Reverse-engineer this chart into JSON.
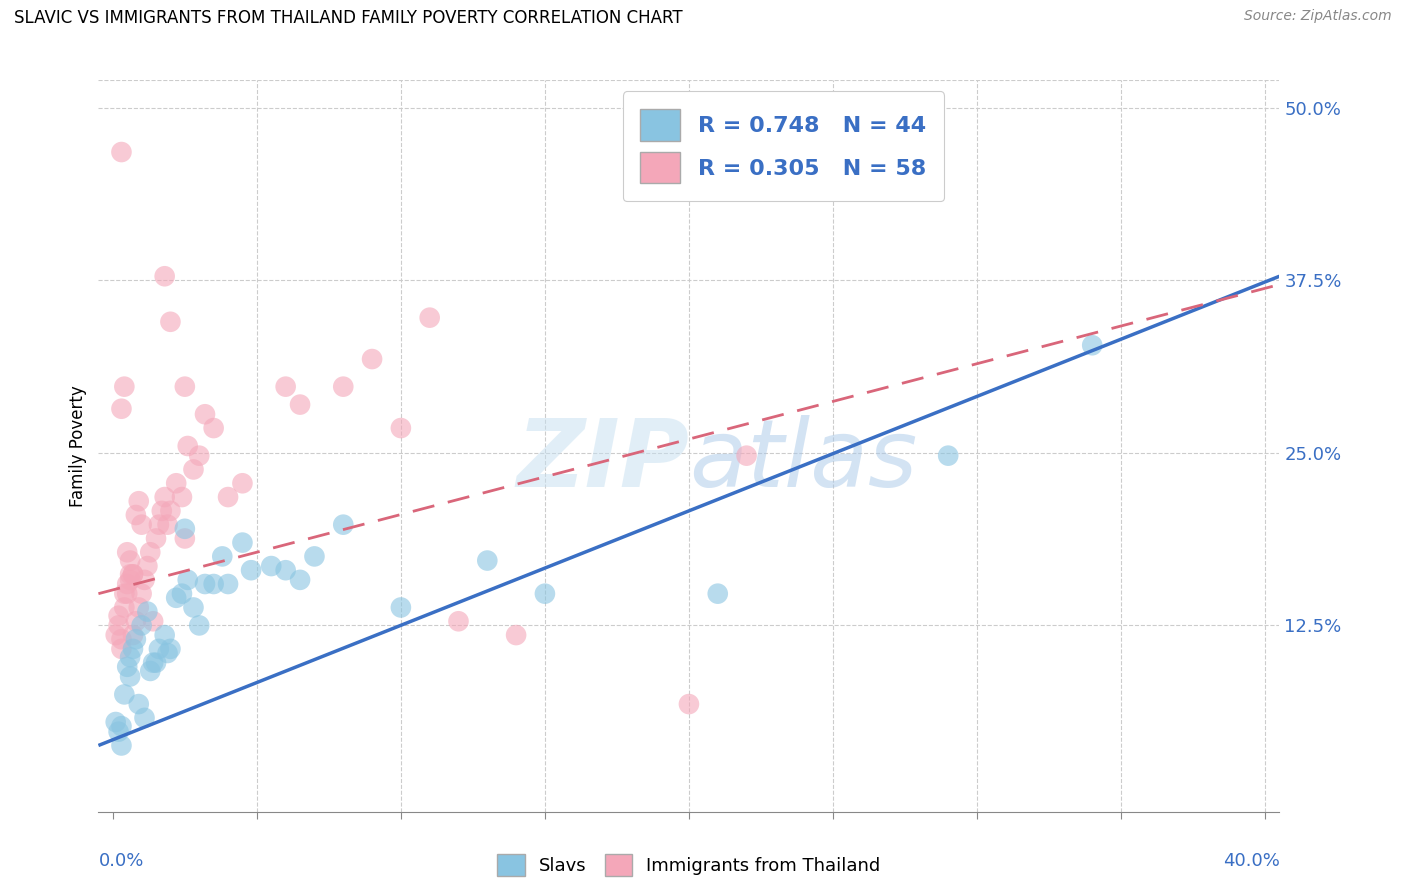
{
  "title": "SLAVIC VS IMMIGRANTS FROM THAILAND FAMILY POVERTY CORRELATION CHART",
  "source": "Source: ZipAtlas.com",
  "ylabel": "Family Poverty",
  "yticks": [
    0.0,
    0.125,
    0.25,
    0.375,
    0.5
  ],
  "ytick_labels": [
    "",
    "12.5%",
    "25.0%",
    "37.5%",
    "50.0%"
  ],
  "xticks": [
    0.0,
    0.05,
    0.1,
    0.15,
    0.2,
    0.25,
    0.3,
    0.35,
    0.4
  ],
  "xlim": [
    -0.005,
    0.405
  ],
  "ylim": [
    -0.01,
    0.52
  ],
  "legend_slavs_R": "0.748",
  "legend_slavs_N": "44",
  "legend_thai_R": "0.305",
  "legend_thai_N": "58",
  "slavs_color": "#89c4e1",
  "thai_color": "#f4a7b9",
  "slavs_line_color": "#3a6fc4",
  "thai_line_color": "#d9667a",
  "watermark_color": "#c5dff0",
  "slavs_scatter": [
    [
      0.001,
      0.055
    ],
    [
      0.002,
      0.048
    ],
    [
      0.003,
      0.038
    ],
    [
      0.003,
      0.052
    ],
    [
      0.004,
      0.075
    ],
    [
      0.005,
      0.095
    ],
    [
      0.006,
      0.088
    ],
    [
      0.006,
      0.102
    ],
    [
      0.007,
      0.108
    ],
    [
      0.008,
      0.115
    ],
    [
      0.009,
      0.068
    ],
    [
      0.01,
      0.125
    ],
    [
      0.011,
      0.058
    ],
    [
      0.012,
      0.135
    ],
    [
      0.013,
      0.092
    ],
    [
      0.014,
      0.098
    ],
    [
      0.015,
      0.098
    ],
    [
      0.016,
      0.108
    ],
    [
      0.018,
      0.118
    ],
    [
      0.019,
      0.105
    ],
    [
      0.02,
      0.108
    ],
    [
      0.022,
      0.145
    ],
    [
      0.024,
      0.148
    ],
    [
      0.025,
      0.195
    ],
    [
      0.026,
      0.158
    ],
    [
      0.028,
      0.138
    ],
    [
      0.03,
      0.125
    ],
    [
      0.032,
      0.155
    ],
    [
      0.035,
      0.155
    ],
    [
      0.038,
      0.175
    ],
    [
      0.04,
      0.155
    ],
    [
      0.045,
      0.185
    ],
    [
      0.048,
      0.165
    ],
    [
      0.055,
      0.168
    ],
    [
      0.06,
      0.165
    ],
    [
      0.065,
      0.158
    ],
    [
      0.07,
      0.175
    ],
    [
      0.08,
      0.198
    ],
    [
      0.1,
      0.138
    ],
    [
      0.13,
      0.172
    ],
    [
      0.15,
      0.148
    ],
    [
      0.21,
      0.148
    ],
    [
      0.29,
      0.248
    ],
    [
      0.34,
      0.328
    ]
  ],
  "thai_scatter": [
    [
      0.001,
      0.118
    ],
    [
      0.002,
      0.125
    ],
    [
      0.002,
      0.132
    ],
    [
      0.003,
      0.108
    ],
    [
      0.003,
      0.115
    ],
    [
      0.004,
      0.138
    ],
    [
      0.004,
      0.148
    ],
    [
      0.005,
      0.148
    ],
    [
      0.005,
      0.155
    ],
    [
      0.006,
      0.158
    ],
    [
      0.006,
      0.162
    ],
    [
      0.007,
      0.118
    ],
    [
      0.007,
      0.162
    ],
    [
      0.008,
      0.128
    ],
    [
      0.008,
      0.205
    ],
    [
      0.009,
      0.138
    ],
    [
      0.009,
      0.215
    ],
    [
      0.01,
      0.148
    ],
    [
      0.01,
      0.198
    ],
    [
      0.011,
      0.158
    ],
    [
      0.012,
      0.168
    ],
    [
      0.013,
      0.178
    ],
    [
      0.014,
      0.128
    ],
    [
      0.015,
      0.188
    ],
    [
      0.016,
      0.198
    ],
    [
      0.017,
      0.208
    ],
    [
      0.018,
      0.218
    ],
    [
      0.019,
      0.198
    ],
    [
      0.02,
      0.208
    ],
    [
      0.02,
      0.345
    ],
    [
      0.022,
      0.228
    ],
    [
      0.024,
      0.218
    ],
    [
      0.025,
      0.188
    ],
    [
      0.025,
      0.298
    ],
    [
      0.026,
      0.255
    ],
    [
      0.028,
      0.238
    ],
    [
      0.03,
      0.248
    ],
    [
      0.032,
      0.278
    ],
    [
      0.035,
      0.268
    ],
    [
      0.04,
      0.218
    ],
    [
      0.045,
      0.228
    ],
    [
      0.06,
      0.298
    ],
    [
      0.065,
      0.285
    ],
    [
      0.08,
      0.298
    ],
    [
      0.1,
      0.268
    ],
    [
      0.003,
      0.468
    ],
    [
      0.018,
      0.378
    ],
    [
      0.003,
      0.282
    ],
    [
      0.004,
      0.298
    ],
    [
      0.12,
      0.128
    ],
    [
      0.14,
      0.118
    ],
    [
      0.2,
      0.068
    ],
    [
      0.22,
      0.248
    ],
    [
      0.005,
      0.178
    ],
    [
      0.006,
      0.172
    ],
    [
      0.007,
      0.162
    ],
    [
      0.11,
      0.348
    ],
    [
      0.09,
      0.318
    ]
  ],
  "slavs_line": {
    "x0": -0.005,
    "y0": 0.038,
    "x1": 0.405,
    "y1": 0.378
  },
  "thai_line": {
    "x0": -0.005,
    "y0": 0.148,
    "x1": 0.405,
    "y1": 0.372
  }
}
